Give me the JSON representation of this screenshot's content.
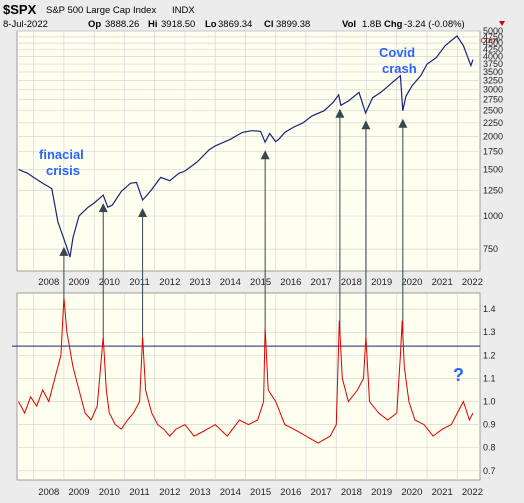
{
  "header": {
    "symbol": "$SPX",
    "name": "S&P 500 Large Cap Index",
    "exchange": "INDX",
    "date": "8-Jul-2022",
    "op_label": "Op",
    "op": "3888.26",
    "hi_label": "Hi",
    "hi": "3918.50",
    "lo_label": "Lo",
    "lo": "3869.34",
    "cl_label": "Cl",
    "cl": "3899.38",
    "vol_label": "Vol",
    "vol": "1.8B",
    "chg_label": "Chg",
    "chg": "-3.24 (-0.08%)",
    "watermark": "@ StockCharts.com"
  },
  "colors": {
    "background": "#ececec",
    "panel": "#fffff0",
    "price_line": "#1a237e",
    "indicator_line": "#dd0000",
    "hline": "#1a237e",
    "annotation": "#2962ff",
    "arrow": "#37474f"
  },
  "chart_data": [
    {
      "type": "line",
      "panel": "top",
      "series": [
        {
          "name": "$SPX",
          "x": [
            2007.5,
            2007.8,
            2008.0,
            2008.3,
            2008.6,
            2008.8,
            2008.95,
            2009.1,
            2009.2,
            2009.3,
            2009.5,
            2009.8,
            2010.0,
            2010.3,
            2010.45,
            2010.6,
            2010.9,
            2011.2,
            2011.4,
            2011.6,
            2011.75,
            2011.9,
            2012.2,
            2012.5,
            2012.8,
            2013.0,
            2013.4,
            2013.8,
            2014.0,
            2014.5,
            2014.9,
            2015.2,
            2015.5,
            2015.65,
            2015.8,
            2016.0,
            2016.1,
            2016.3,
            2016.6,
            2016.9,
            2017.2,
            2017.6,
            2017.9,
            2018.08,
            2018.15,
            2018.4,
            2018.75,
            2018.97,
            2019.2,
            2019.5,
            2019.9,
            2020.12,
            2020.2,
            2020.3,
            2020.5,
            2020.8,
            2021.0,
            2021.3,
            2021.6,
            2021.99,
            2022.2,
            2022.45,
            2022.52
          ],
          "y": [
            1500,
            1450,
            1400,
            1330,
            1270,
            950,
            850,
            760,
            700,
            830,
            1000,
            1080,
            1120,
            1200,
            1080,
            1100,
            1240,
            1330,
            1340,
            1150,
            1200,
            1260,
            1400,
            1360,
            1450,
            1480,
            1600,
            1780,
            1840,
            1950,
            2070,
            2100,
            2090,
            1900,
            2050,
            1910,
            1950,
            2070,
            2170,
            2250,
            2390,
            2500,
            2690,
            2870,
            2620,
            2720,
            2930,
            2450,
            2800,
            2950,
            3230,
            3390,
            2500,
            2830,
            3100,
            3400,
            3750,
            3960,
            4400,
            4790,
            4400,
            3700,
            3900
          ]
        }
      ],
      "y_ticks": [
        750,
        1000,
        1250,
        1500,
        1750,
        2000,
        2250,
        2500,
        2750,
        3000,
        3250,
        3500,
        3750,
        4000,
        4250,
        4500,
        4750,
        5000
      ],
      "ylim": [
        620,
        5000
      ],
      "log_scale": true,
      "annotations": [
        "finacial",
        "crisis",
        "Covid",
        "crash"
      ],
      "arrow_years": [
        2009.0,
        2010.3,
        2011.6,
        2015.65,
        2018.12,
        2018.98,
        2020.2
      ]
    },
    {
      "type": "line",
      "panel": "bottom",
      "series": [
        {
          "name": "indicator",
          "x": [
            2007.5,
            2007.7,
            2007.9,
            2008.1,
            2008.3,
            2008.5,
            2008.7,
            2008.9,
            2009.0,
            2009.1,
            2009.3,
            2009.5,
            2009.7,
            2009.9,
            2010.1,
            2010.3,
            2010.4,
            2010.5,
            2010.7,
            2010.9,
            2011.1,
            2011.3,
            2011.5,
            2011.6,
            2011.7,
            2011.9,
            2012.1,
            2012.3,
            2012.5,
            2012.7,
            2013.0,
            2013.3,
            2013.6,
            2014.0,
            2014.4,
            2014.8,
            2015.1,
            2015.4,
            2015.6,
            2015.65,
            2015.75,
            2016.0,
            2016.3,
            2016.6,
            2017.0,
            2017.4,
            2017.8,
            2018.0,
            2018.1,
            2018.2,
            2018.4,
            2018.7,
            2018.9,
            2018.98,
            2019.1,
            2019.4,
            2019.7,
            2020.0,
            2020.12,
            2020.18,
            2020.25,
            2020.4,
            2020.6,
            2020.9,
            2021.2,
            2021.5,
            2021.8,
            2022.0,
            2022.2,
            2022.4,
            2022.52
          ],
          "y": [
            1.0,
            0.95,
            1.02,
            0.98,
            1.05,
            1.0,
            1.1,
            1.2,
            1.45,
            1.3,
            1.15,
            1.05,
            0.95,
            0.92,
            0.98,
            1.28,
            1.05,
            0.95,
            0.9,
            0.88,
            0.92,
            0.95,
            1.0,
            1.28,
            1.05,
            0.95,
            0.9,
            0.88,
            0.85,
            0.88,
            0.9,
            0.85,
            0.87,
            0.9,
            0.85,
            0.92,
            0.9,
            0.92,
            1.0,
            1.32,
            1.05,
            1.0,
            0.9,
            0.88,
            0.85,
            0.82,
            0.85,
            0.9,
            1.35,
            1.1,
            1.0,
            1.05,
            1.1,
            1.28,
            1.0,
            0.95,
            0.92,
            0.95,
            1.2,
            1.35,
            1.15,
            1.0,
            0.92,
            0.9,
            0.85,
            0.88,
            0.9,
            0.95,
            1.0,
            0.92,
            0.95
          ]
        }
      ],
      "hline": 1.24,
      "y_ticks": [
        0.7,
        0.8,
        0.9,
        1.0,
        1.1,
        1.2,
        1.3,
        1.4
      ],
      "ylim": [
        0.66,
        1.47
      ],
      "annotations": [
        "?"
      ]
    }
  ],
  "x_ticks": [
    "2008",
    "2009",
    "2010",
    "2011",
    "2012",
    "2013",
    "2014",
    "2015",
    "2016",
    "2017",
    "2018",
    "2019",
    "2020",
    "2021",
    "2022"
  ],
  "xlim": [
    2007.45,
    2022.75
  ]
}
